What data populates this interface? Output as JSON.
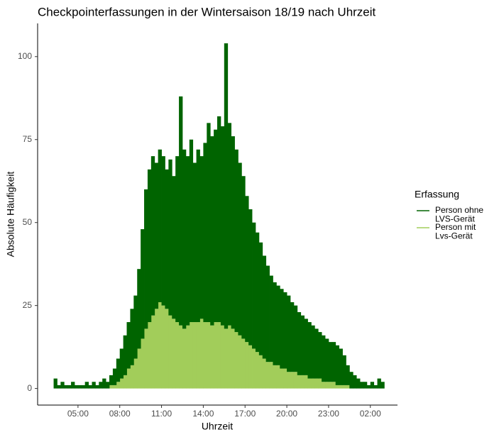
{
  "chart_data": {
    "type": "stacked-bar",
    "title": "Checkpointerfassungen in der Wintersaison 18/19 nach Uhrzeit",
    "x_label": "Uhrzeit",
    "y_label": "Absolute Häufigkeit",
    "legend_title": "Erfassung",
    "x": [
      3.25,
      3.5,
      3.75,
      4,
      4.25,
      4.5,
      4.75,
      5,
      5.25,
      5.5,
      5.75,
      6,
      6.25,
      6.5,
      6.75,
      7,
      7.25,
      7.5,
      7.75,
      8,
      8.25,
      8.5,
      8.75,
      9,
      9.25,
      9.5,
      9.75,
      10,
      10.25,
      10.5,
      10.75,
      11,
      11.25,
      11.5,
      11.75,
      12,
      12.25,
      12.5,
      12.75,
      13,
      13.25,
      13.5,
      13.75,
      14,
      14.25,
      14.5,
      14.75,
      15,
      15.25,
      15.5,
      15.75,
      16,
      16.25,
      16.5,
      16.75,
      17,
      17.25,
      17.5,
      17.75,
      18,
      18.25,
      18.5,
      18.75,
      19,
      19.25,
      19.5,
      19.75,
      20,
      20.25,
      20.5,
      20.75,
      21,
      21.25,
      21.5,
      21.75,
      22,
      22.25,
      22.5,
      22.75,
      23,
      23.25,
      23.5,
      23.75,
      24,
      24.25,
      24.5,
      24.75,
      25,
      25.25,
      25.5,
      25.75,
      26,
      26.25,
      26.5,
      26.75
    ],
    "series": [
      {
        "name": "Person mit\nLvs-Gerät",
        "color": "#a2cd5a",
        "values": [
          0,
          0,
          0,
          0,
          0,
          0,
          0,
          0,
          0,
          0,
          0,
          0,
          0,
          0,
          0,
          0,
          1,
          1,
          2,
          3,
          4,
          6,
          7,
          9,
          12,
          15,
          18,
          20,
          22,
          24,
          26,
          25,
          24,
          22,
          21,
          20,
          19,
          18,
          19,
          20,
          20,
          20,
          21,
          20,
          20,
          19,
          20,
          20,
          19,
          18,
          19,
          18,
          17,
          16,
          15,
          14,
          13,
          12,
          11,
          10,
          9,
          8,
          8,
          7,
          7,
          6,
          6,
          5,
          5,
          5,
          4,
          4,
          4,
          3,
          3,
          3,
          3,
          2,
          2,
          2,
          2,
          1,
          1,
          1,
          1,
          0,
          0,
          0,
          0,
          0,
          0,
          0,
          0,
          0,
          0
        ]
      },
      {
        "name": "Person ohne\nLVS-Gerät",
        "color": "#006400",
        "values": [
          3,
          1,
          2,
          1,
          1,
          2,
          1,
          1,
          1,
          2,
          1,
          2,
          1,
          2,
          3,
          2,
          3,
          5,
          7,
          9,
          12,
          14,
          17,
          19,
          24,
          33,
          42,
          46,
          48,
          44,
          46,
          45,
          42,
          47,
          43,
          50,
          69,
          54,
          51,
          55,
          48,
          52,
          49,
          54,
          60,
          57,
          58,
          62,
          60,
          86,
          61,
          58,
          55,
          52,
          49,
          44,
          41,
          38,
          36,
          34,
          31,
          29,
          26,
          25,
          24,
          24,
          23,
          23,
          21,
          20,
          19,
          18,
          17,
          17,
          16,
          15,
          14,
          14,
          13,
          12,
          12,
          12,
          11,
          9,
          6,
          5,
          4,
          3,
          2,
          2,
          1,
          2,
          1,
          3,
          2
        ]
      }
    ],
    "legend_order": [
      1,
      0
    ],
    "bin_width": 0.25,
    "xlim": [
      2.1,
      27.95
    ],
    "xticks": [
      {
        "value": 5,
        "label": "05:00"
      },
      {
        "value": 8,
        "label": "08:00"
      },
      {
        "value": 11,
        "label": "11:00"
      },
      {
        "value": 14,
        "label": "14:00"
      },
      {
        "value": 17,
        "label": "17:00"
      },
      {
        "value": 20,
        "label": "20:00"
      },
      {
        "value": 23,
        "label": "23:00"
      },
      {
        "value": 26,
        "label": "02:00"
      }
    ],
    "ylim": [
      -5,
      110
    ],
    "yticks": [
      0,
      25,
      50,
      75,
      100
    ],
    "grid": false
  }
}
